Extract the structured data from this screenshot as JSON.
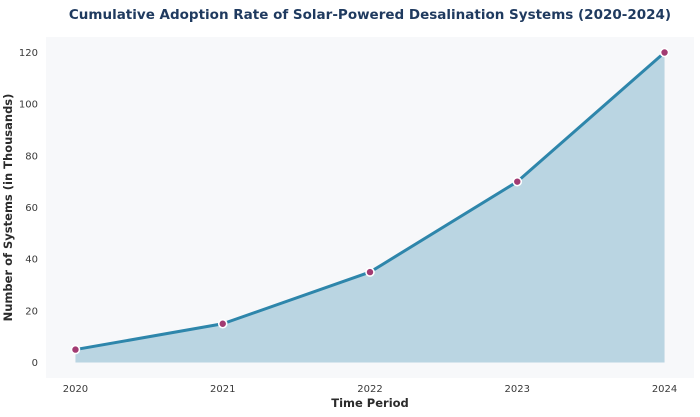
{
  "chart_data": {
    "type": "area",
    "title": "Cumulative Adoption Rate of Solar-Powered Desalination Systems (2020-2024)",
    "xlabel": "Time Period",
    "ylabel": "Number of Systems (in Thousands)",
    "categories": [
      "2020",
      "2021",
      "2022",
      "2023",
      "2024"
    ],
    "values": [
      5,
      15,
      35,
      70,
      120
    ],
    "yticks": [
      0,
      20,
      40,
      60,
      80,
      100,
      120
    ],
    "ylim": [
      -6,
      126
    ],
    "x_margin_units": 0.2,
    "grid": false,
    "legend_position": "none",
    "fill_to_value": 0,
    "colors": {
      "line": "#2e86ab",
      "marker": "#a23b72",
      "marker_edge": "#ffffff",
      "fill": "#2e86ab",
      "fill_opacity": 0.3,
      "plot_background": "#f7f8fa",
      "figure_background": "#ffffff",
      "title": "#1f3a5f",
      "axis_label": "#2b2b2b",
      "tick_label": "#3a3a3a"
    }
  }
}
